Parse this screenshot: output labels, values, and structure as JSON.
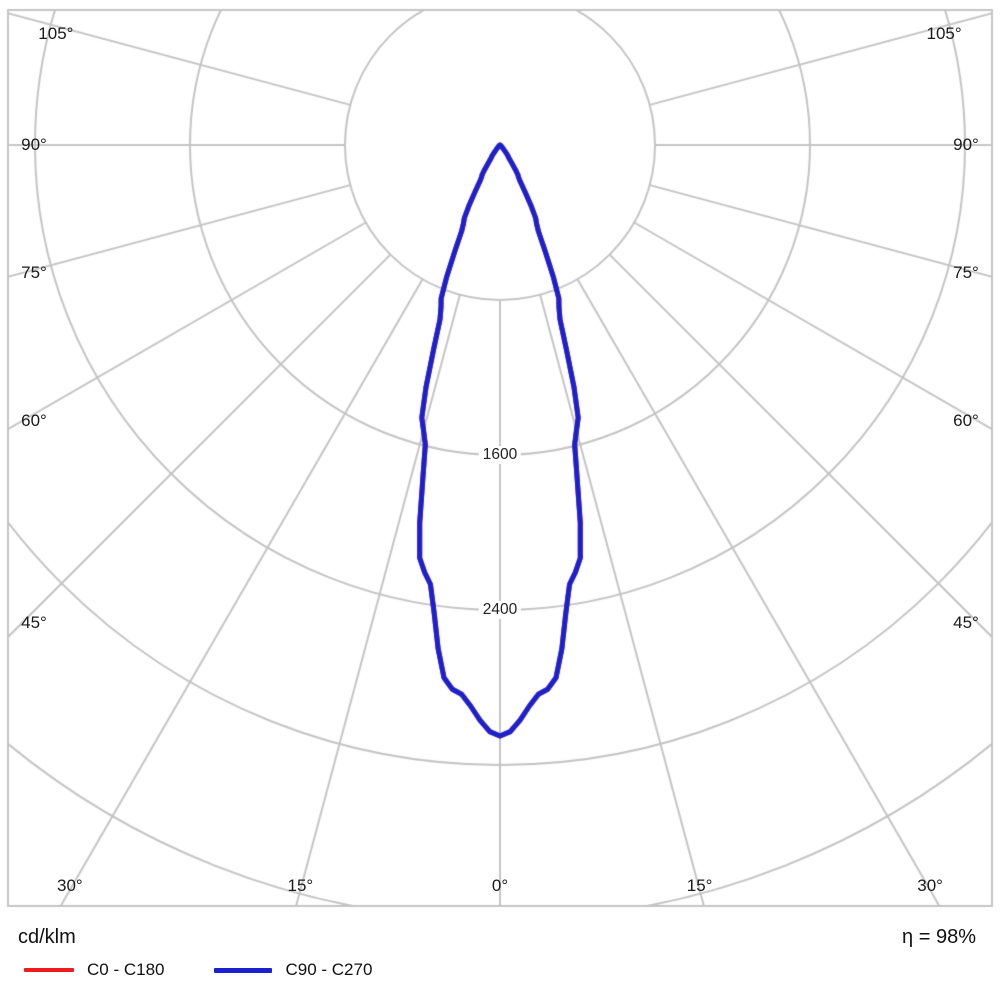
{
  "chart_data": {
    "type": "polar",
    "subtype": "luminous-intensity-distribution",
    "unit_label": "cd/klm",
    "efficiency_label": "η = 98%",
    "grid_color": "#c4c4c4",
    "text_color": "#1a1a1a",
    "ring_step_cd": 800,
    "ring_labels": [
      {
        "value": 1600,
        "label": "1600"
      },
      {
        "value": 2400,
        "label": "2400"
      }
    ],
    "angle_ticks": [
      {
        "deg": 0,
        "label": "0°"
      },
      {
        "deg": 15,
        "label": "15°"
      },
      {
        "deg": 30,
        "label": "30°"
      },
      {
        "deg": 45,
        "label": "45°"
      },
      {
        "deg": 60,
        "label": "60°"
      },
      {
        "deg": 75,
        "label": "75°"
      },
      {
        "deg": 90,
        "label": "90°"
      },
      {
        "deg": 105,
        "label": "105°"
      }
    ],
    "series": [
      {
        "name": "C0 - C180",
        "color": "#ee1c1c",
        "angles_deg": [
          0,
          5,
          10,
          15,
          20,
          25,
          30,
          35,
          40,
          45,
          50,
          55,
          60,
          65,
          70,
          75,
          80,
          85,
          90
        ],
        "values_cd_klm": [
          3050,
          2820,
          2240,
          1525,
          890,
          445,
          190,
          75,
          30,
          12,
          6,
          3,
          2,
          1,
          1,
          0,
          0,
          0,
          0
        ]
      },
      {
        "name": "C90 - C270",
        "color": "#1a22cf",
        "angles_deg": [
          0,
          5,
          10,
          15,
          20,
          25,
          30,
          35,
          40,
          45,
          50,
          55,
          60,
          65,
          70,
          75,
          80,
          85,
          90
        ],
        "values_cd_klm": [
          3050,
          2820,
          2240,
          1525,
          890,
          445,
          190,
          75,
          30,
          12,
          6,
          3,
          2,
          1,
          1,
          0,
          0,
          0,
          0
        ]
      }
    ]
  }
}
